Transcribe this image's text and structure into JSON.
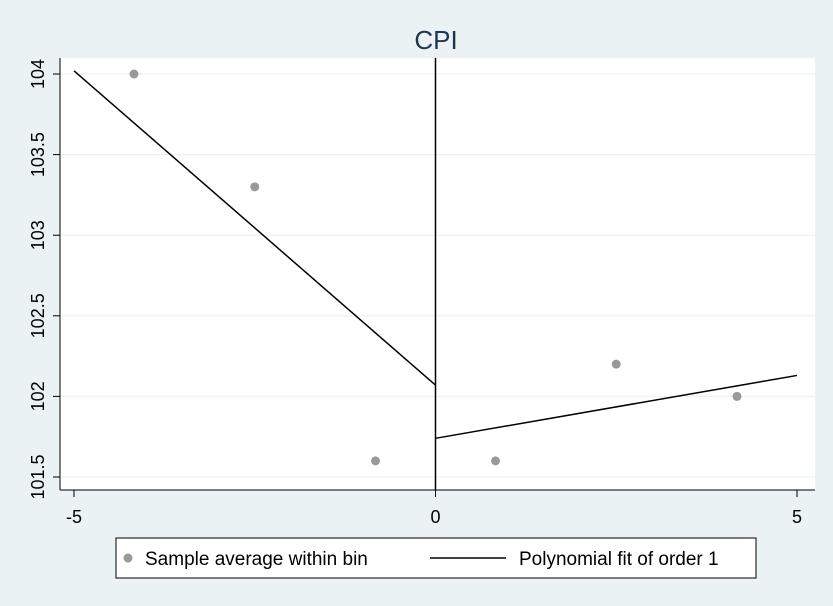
{
  "chart_data": {
    "type": "scatter",
    "title": "CPI",
    "xlabel": "",
    "ylabel": "",
    "xlim": [
      -5,
      5
    ],
    "ylim": [
      101.5,
      104
    ],
    "x_ticks": [
      -5,
      0,
      5
    ],
    "x_tick_labels": [
      "-5",
      "0",
      "5"
    ],
    "y_ticks": [
      101.5,
      102,
      102.5,
      103,
      103.5,
      104
    ],
    "y_tick_labels": [
      "101.5",
      "102",
      "102.5",
      "103",
      "103.5",
      "104"
    ],
    "grid": true,
    "cutoff_line": 0,
    "series": [
      {
        "name": "Sample average within bin",
        "kind": "scatter",
        "color": "#999999",
        "points": [
          {
            "x": -4.17,
            "y": 104.0
          },
          {
            "x": -2.5,
            "y": 103.3
          },
          {
            "x": -0.83,
            "y": 101.6
          },
          {
            "x": 0.83,
            "y": 101.6
          },
          {
            "x": 2.5,
            "y": 102.2
          },
          {
            "x": 4.17,
            "y": 102.0
          }
        ]
      },
      {
        "name": "Polynomial fit of order 1",
        "kind": "line",
        "color": "#000000",
        "segments": [
          [
            {
              "x": -5,
              "y": 104.02
            },
            {
              "x": 0,
              "y": 102.07
            }
          ],
          [
            {
              "x": 0,
              "y": 101.74
            },
            {
              "x": 5,
              "y": 102.13
            }
          ]
        ]
      }
    ],
    "legend_position": "bottom"
  },
  "colors": {
    "background": "#eaf2f3",
    "plot_area": "#ffffff",
    "grid": "#eaf2f3",
    "title": "#1e3553"
  }
}
